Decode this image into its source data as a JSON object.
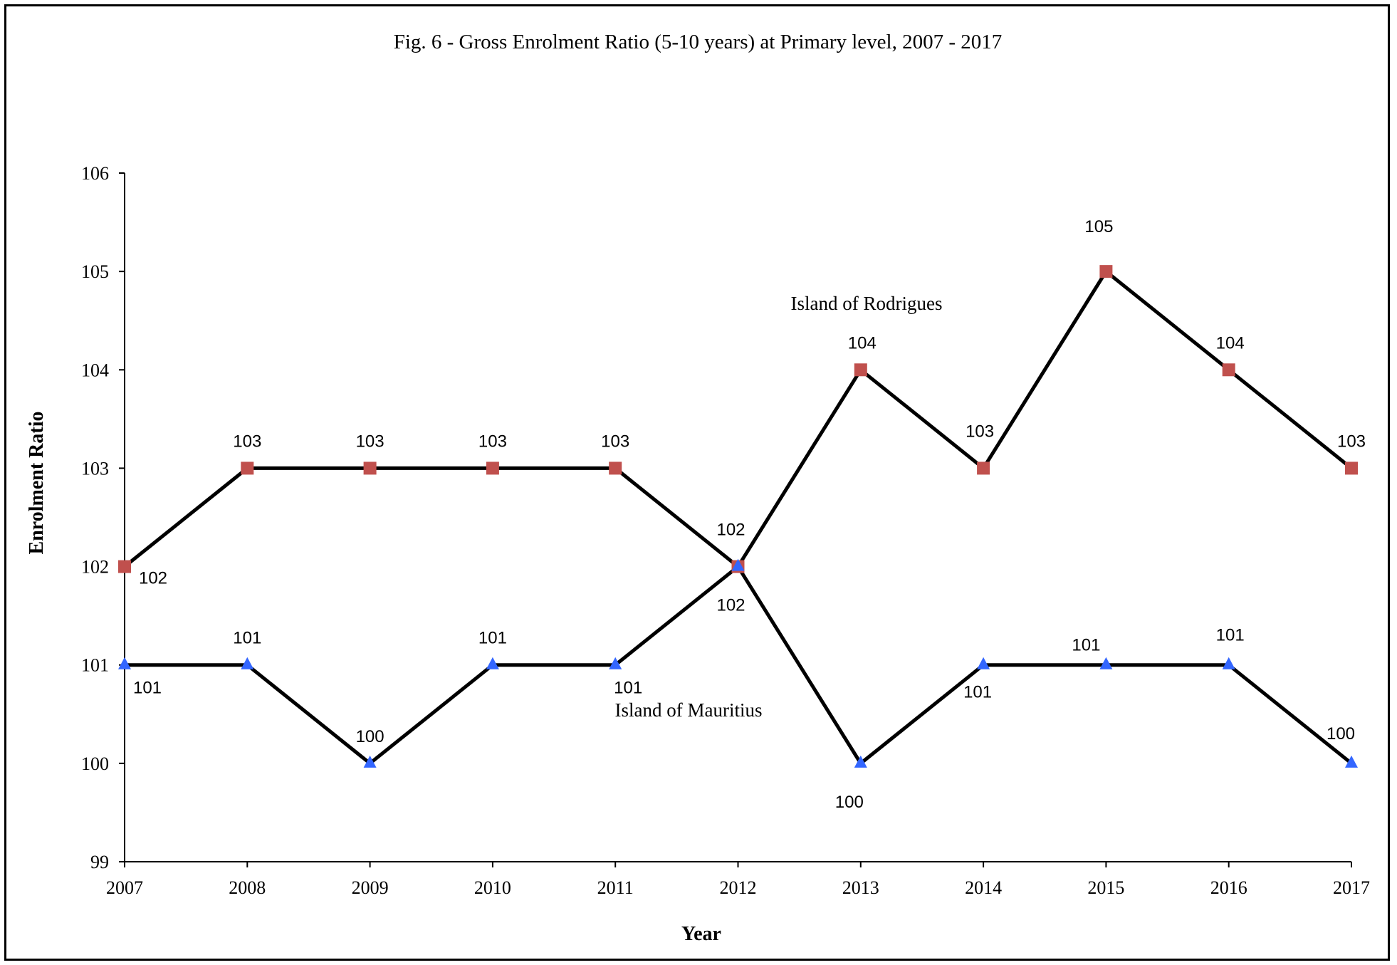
{
  "chart_data": {
    "type": "line",
    "title": "Fig. 6 - Gross Enrolment Ratio (5-10 years) at Primary level, 2007 - 2017",
    "xlabel": "Year",
    "ylabel": "Enrolment Ratio",
    "categories": [
      "2007",
      "2008",
      "2009",
      "2010",
      "2011",
      "2012",
      "2013",
      "2014",
      "2015",
      "2016",
      "2017"
    ],
    "ylim": [
      99,
      106
    ],
    "yticks": [
      "99",
      "100",
      "101",
      "102",
      "103",
      "104",
      "105",
      "106"
    ],
    "grid": false,
    "series": [
      {
        "name": "Island of Rodrigues",
        "values": [
          102,
          103,
          103,
          103,
          103,
          102,
          104,
          103,
          105,
          104,
          103
        ],
        "marker": "square",
        "marker_color": "#C0504D",
        "line_color": "#000000"
      },
      {
        "name": "Island of Mauritius",
        "values": [
          101,
          101,
          100,
          101,
          101,
          102,
          100,
          101,
          101,
          101,
          100
        ],
        "marker": "triangle",
        "marker_color": "#3366FF",
        "line_color": "#000000"
      }
    ]
  }
}
